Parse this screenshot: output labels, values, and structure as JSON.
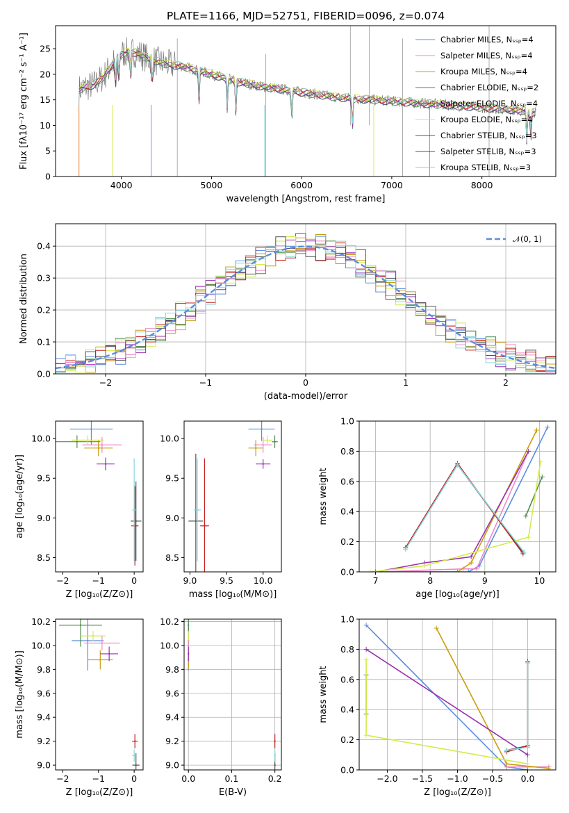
{
  "figure_title": "PLATE=1166, MJD=52751, FIBERID=0096, z=0.074",
  "colors": {
    "Chabrier MILES": "#5b8de0",
    "Salpeter MILES": "#ee88c8",
    "Kroupa MILES": "#c89c10",
    "Chabrier ELODIE": "#4f8a4f",
    "Salpeter ELODIE": "#9a2fb0",
    "Kroupa ELODIE": "#d2ec4a",
    "Chabrier STELIB": "#555555",
    "Salpeter STELIB": "#c42020",
    "Kroupa STELIB": "#86d6dc",
    "normal_curve": "#5b8de0"
  },
  "chart_data": [
    {
      "id": "spectrum",
      "type": "line",
      "title": "PLATE=1166, MJD=52751, FIBERID=0096, z=0.074",
      "xlabel": "wavelength [Angstrom, rest frame]",
      "ylabel": "Flux [fλ10⁻¹⁷ erg cm⁻² s⁻¹ A⁻¹]",
      "xlim": [
        3270,
        8820
      ],
      "ylim": [
        0,
        29.5
      ],
      "xticks": [
        4000,
        5000,
        6000,
        7000,
        8000
      ],
      "yticks": [
        0,
        5,
        10,
        15,
        20,
        25
      ],
      "grid": false,
      "legend_position": "top-right",
      "legend": [
        "Chabrier MILES, Nₛₛₚ=4",
        "Salpeter MILES, Nₛₛₚ=4",
        "Kroupa MILES, Nₛₛₚ=4",
        "Chabrier ELODIE, Nₛₛₚ=2",
        "Salpeter ELODIE, Nₛₛₚ=4",
        "Kroupa ELODIE, Nₛₛₚ=4",
        "Chabrier STELIB, Nₛₛₚ=3",
        "Salpeter STELIB, Nₛₛₚ=3",
        "Kroupa STELIB, Nₛₛₚ=3"
      ],
      "data_envelope": {
        "x": [
          3530,
          3600,
          3700,
          3800,
          3900,
          4000,
          4100,
          4200,
          4300,
          4500,
          4700,
          5000,
          5300,
          5600,
          6000,
          6400,
          6800,
          7200,
          7600,
          8000,
          8400,
          8600
        ],
        "y": [
          17,
          17.5,
          18,
          19.5,
          22,
          24,
          24.5,
          24,
          23,
          22,
          21.5,
          20,
          18.5,
          17.5,
          16.5,
          15.5,
          15,
          14.5,
          14,
          13.5,
          13,
          12.5
        ]
      }
    },
    {
      "id": "residuals",
      "type": "line",
      "xlabel": "(data-model)/error",
      "ylabel": "Normed distribution",
      "xlim": [
        -2.5,
        2.5
      ],
      "ylim": [
        0,
        0.47
      ],
      "xticks": [
        -2,
        -1,
        0,
        1,
        2
      ],
      "yticks": [
        0.0,
        0.1,
        0.2,
        0.3,
        0.4
      ],
      "grid": true,
      "legend_position": "top-right",
      "legend": [
        "𝒩(0, 1)"
      ],
      "bin_width": 0.1,
      "normal_curve": {
        "mean": 0,
        "sigma": 1
      }
    },
    {
      "id": "age_vs_Z",
      "type": "scatter",
      "xlabel": "Z [log₁₀(Z/Z⊙)]",
      "ylabel": "age  [log₁₀(age/yr)]",
      "xlim": [
        -2.2,
        0.25
      ],
      "ylim": [
        8.32,
        10.22
      ],
      "xticks": [
        -2,
        -1,
        0
      ],
      "yticks": [
        8.5,
        9.0,
        9.5,
        10.0
      ],
      "grid": false,
      "points": [
        {
          "model": "Chabrier MILES",
          "x": -1.2,
          "y": 10.12,
          "xerr": 0.6,
          "yerr": 0.2
        },
        {
          "model": "Salpeter MILES",
          "x": -0.9,
          "y": 9.92,
          "xerr": 0.55,
          "yerr": 0.1
        },
        {
          "model": "Kroupa MILES",
          "x": -1.0,
          "y": 9.88,
          "xerr": 0.4,
          "yerr": 0.1
        },
        {
          "model": "Chabrier ELODIE",
          "x": -1.6,
          "y": 9.96,
          "xerr": 0.65,
          "yerr": 0.08
        },
        {
          "model": "Salpeter ELODIE",
          "x": -0.8,
          "y": 9.68,
          "xerr": 0.25,
          "yerr": 0.08
        },
        {
          "model": "Kroupa ELODIE",
          "x": -1.3,
          "y": 9.98,
          "xerr": 0.45,
          "yerr": 0.06
        },
        {
          "model": "Chabrier STELIB",
          "x": 0.05,
          "y": 8.96,
          "xerr": 0.15,
          "yerr": 0.5
        },
        {
          "model": "Salpeter STELIB",
          "x": 0.02,
          "y": 8.9,
          "xerr": 0.1,
          "yerr": 0.5
        },
        {
          "model": "Kroupa STELIB",
          "x": 0.0,
          "y": 9.1,
          "xerr": 0.05,
          "yerr": 0.65
        }
      ]
    },
    {
      "id": "age_vs_mass",
      "type": "scatter",
      "xlabel": "mass [log₁₀(M/M⊙)]",
      "xlim": [
        8.92,
        10.25
      ],
      "ylim": [
        8.32,
        10.22
      ],
      "xticks": [
        9.0,
        9.5,
        10.0
      ],
      "yticks": [
        8.5,
        9.0,
        9.5,
        10.0
      ],
      "grid": false,
      "points": [
        {
          "model": "Chabrier MILES",
          "x": 9.98,
          "y": 10.12,
          "xerr": 0.18,
          "yerr": 0.15
        },
        {
          "model": "Salpeter MILES",
          "x": 10.0,
          "y": 9.92,
          "xerr": 0.12,
          "yerr": 0.1
        },
        {
          "model": "Kroupa MILES",
          "x": 9.9,
          "y": 9.88,
          "xerr": 0.1,
          "yerr": 0.1
        },
        {
          "model": "Chabrier ELODIE",
          "x": 10.16,
          "y": 9.96,
          "xerr": 0.04,
          "yerr": 0.08
        },
        {
          "model": "Salpeter ELODIE",
          "x": 10.0,
          "y": 9.68,
          "xerr": 0.1,
          "yerr": 0.06
        },
        {
          "model": "Kroupa ELODIE",
          "x": 10.06,
          "y": 9.98,
          "xerr": 0.06,
          "yerr": 0.06
        },
        {
          "model": "Chabrier STELIB",
          "x": 9.08,
          "y": 8.96,
          "xerr": 0.1,
          "yerr": 0.85
        },
        {
          "model": "Salpeter STELIB",
          "x": 9.2,
          "y": 8.9,
          "xerr": 0.06,
          "yerr": 0.85
        },
        {
          "model": "Kroupa STELIB",
          "x": 9.1,
          "y": 9.1,
          "xerr": 0.05,
          "yerr": 0.65
        }
      ]
    },
    {
      "id": "massweight_vs_age",
      "type": "line",
      "xlabel": "age  [log₁₀(age/yr)]",
      "ylabel": "mass weight",
      "xlim": [
        6.7,
        10.3
      ],
      "ylim": [
        0,
        1.0
      ],
      "xticks": [
        7,
        8,
        9,
        10
      ],
      "yticks": [
        0.0,
        0.2,
        0.4,
        0.6,
        0.8,
        1.0
      ],
      "grid": true,
      "series": [
        {
          "model": "Chabrier MILES",
          "x": [
            7.0,
            8.7,
            8.9,
            10.15
          ],
          "y": [
            0.0,
            0.0,
            0.04,
            0.96
          ]
        },
        {
          "model": "Salpeter MILES",
          "x": [
            7.0,
            8.6,
            8.85,
            9.8
          ],
          "y": [
            0.0,
            0.02,
            0.02,
            0.8
          ]
        },
        {
          "model": "Kroupa MILES",
          "x": [
            7.0,
            8.5,
            8.75,
            9.95
          ],
          "y": [
            0.0,
            0.0,
            0.06,
            0.94
          ]
        },
        {
          "model": "Chabrier ELODIE",
          "x": [
            9.75,
            10.05
          ],
          "y": [
            0.37,
            0.63
          ]
        },
        {
          "model": "Salpeter ELODIE",
          "x": [
            7.0,
            7.9,
            8.75,
            9.8
          ],
          "y": [
            0.0,
            0.06,
            0.1,
            0.8
          ]
        },
        {
          "model": "Kroupa ELODIE",
          "x": [
            6.9,
            7.9,
            9.8,
            10.02
          ],
          "y": [
            0.0,
            0.04,
            0.23,
            0.73
          ]
        },
        {
          "model": "Chabrier STELIB",
          "x": [
            7.55,
            8.5,
            9.7
          ],
          "y": [
            0.16,
            0.71,
            0.13
          ]
        },
        {
          "model": "Salpeter STELIB",
          "x": [
            7.55,
            8.5,
            9.7
          ],
          "y": [
            0.16,
            0.72,
            0.12
          ]
        },
        {
          "model": "Kroupa STELIB",
          "x": [
            7.55,
            8.5,
            9.72
          ],
          "y": [
            0.15,
            0.71,
            0.13
          ]
        }
      ]
    },
    {
      "id": "mass_vs_Z",
      "type": "scatter",
      "xlabel": "Z [log₁₀(Z/Z⊙)]",
      "ylabel": "mass [log₁₀(M/M⊙)]",
      "xlim": [
        -2.2,
        0.25
      ],
      "ylim": [
        8.96,
        10.22
      ],
      "xticks": [
        -2,
        -1,
        0
      ],
      "yticks": [
        9.0,
        9.2,
        9.4,
        9.6,
        9.8,
        10.0,
        10.2
      ],
      "grid": false,
      "points": [
        {
          "model": "Chabrier MILES",
          "x": -1.3,
          "y": 10.04,
          "xerr": 0.45,
          "yerr": 0.25
        },
        {
          "model": "Salpeter MILES",
          "x": -0.9,
          "y": 10.02,
          "xerr": 0.5,
          "yerr": 0.06
        },
        {
          "model": "Kroupa MILES",
          "x": -0.95,
          "y": 9.88,
          "xerr": 0.35,
          "yerr": 0.08
        },
        {
          "model": "Chabrier ELODIE",
          "x": -1.5,
          "y": 10.17,
          "xerr": 0.6,
          "yerr": 0.18
        },
        {
          "model": "Salpeter ELODIE",
          "x": -0.7,
          "y": 9.93,
          "xerr": 0.25,
          "yerr": 0.06
        },
        {
          "model": "Kroupa ELODIE",
          "x": -1.15,
          "y": 10.08,
          "xerr": 0.35,
          "yerr": 0.04
        },
        {
          "model": "Chabrier STELIB",
          "x": 0.05,
          "y": 9.0,
          "xerr": 0.1,
          "yerr": 0.1
        },
        {
          "model": "Salpeter STELIB",
          "x": 0.02,
          "y": 9.2,
          "xerr": 0.08,
          "yerr": 0.06
        },
        {
          "model": "Kroupa STELIB",
          "x": 0.0,
          "y": 9.08,
          "xerr": 0.05,
          "yerr": 0.05
        }
      ]
    },
    {
      "id": "mass_vs_ebv",
      "type": "scatter",
      "xlabel": "E(B-V)",
      "xlim": [
        -0.01,
        0.215
      ],
      "ylim": [
        8.96,
        10.22
      ],
      "xticks": [
        0.0,
        0.1,
        0.2
      ],
      "yticks": [
        9.0,
        9.2,
        9.4,
        9.6,
        9.8,
        10.0,
        10.2
      ],
      "grid": true,
      "points": [
        {
          "model": "Chabrier MILES",
          "x": 0.0,
          "y": 10.04,
          "xerr": 0.0,
          "yerr": 0.25
        },
        {
          "model": "Salpeter MILES",
          "x": 0.0,
          "y": 10.02,
          "xerr": 0.0,
          "yerr": 0.06
        },
        {
          "model": "Kroupa MILES",
          "x": 0.0,
          "y": 9.88,
          "xerr": 0.0,
          "yerr": 0.08
        },
        {
          "model": "Chabrier ELODIE",
          "x": 0.0,
          "y": 10.17,
          "xerr": 0.0,
          "yerr": 0.05
        },
        {
          "model": "Salpeter ELODIE",
          "x": 0.0,
          "y": 9.93,
          "xerr": 0.0,
          "yerr": 0.06
        },
        {
          "model": "Kroupa ELODIE",
          "x": 0.0,
          "y": 10.08,
          "xerr": 0.0,
          "yerr": 0.04
        },
        {
          "model": "Chabrier STELIB",
          "x": 0.2,
          "y": 9.0,
          "xerr": 0.0,
          "yerr": 0.1
        },
        {
          "model": "Salpeter STELIB",
          "x": 0.2,
          "y": 9.2,
          "xerr": 0.0,
          "yerr": 0.06
        },
        {
          "model": "Kroupa STELIB",
          "x": 0.2,
          "y": 9.08,
          "xerr": 0.0,
          "yerr": 0.05
        }
      ]
    },
    {
      "id": "massweight_vs_Z",
      "type": "line",
      "xlabel": "Z [log₁₀(Z/Z⊙)]",
      "ylabel": "mass weight",
      "xlim": [
        -2.4,
        0.4
      ],
      "ylim": [
        0,
        1.0
      ],
      "xticks": [
        -2.0,
        -1.5,
        -1.0,
        -0.5,
        0.0
      ],
      "yticks": [
        0.0,
        0.2,
        0.4,
        0.6,
        0.8,
        1.0
      ],
      "grid": true,
      "series": [
        {
          "model": "Chabrier MILES",
          "x": [
            -2.3,
            -0.3,
            0.0
          ],
          "y": [
            0.96,
            0.02,
            0.0
          ]
        },
        {
          "model": "Salpeter MILES",
          "x": [
            -0.3,
            0.3
          ],
          "y": [
            0.02,
            0.02
          ]
        },
        {
          "model": "Kroupa MILES",
          "x": [
            -1.3,
            -0.3,
            0.3
          ],
          "y": [
            0.94,
            0.04,
            0.01
          ]
        },
        {
          "model": "Chabrier ELODIE",
          "x": [
            -2.3,
            -2.3
          ],
          "y": [
            0.37,
            0.63
          ]
        },
        {
          "model": "Salpeter ELODIE",
          "x": [
            -2.3,
            0.0
          ],
          "y": [
            0.8,
            0.1
          ]
        },
        {
          "model": "Kroupa ELODIE",
          "x": [
            -2.3,
            -2.3,
            0.0
          ],
          "y": [
            0.73,
            0.23,
            0.04
          ]
        },
        {
          "model": "Chabrier STELIB",
          "x": [
            -0.3,
            0.0,
            0.0
          ],
          "y": [
            0.13,
            0.16,
            0.71
          ]
        },
        {
          "model": "Salpeter STELIB",
          "x": [
            -0.3,
            0.0,
            0.0
          ],
          "y": [
            0.12,
            0.16,
            0.72
          ]
        },
        {
          "model": "Kroupa STELIB",
          "x": [
            -0.3,
            0.0,
            0.0
          ],
          "y": [
            0.13,
            0.15,
            0.71
          ]
        }
      ]
    }
  ]
}
